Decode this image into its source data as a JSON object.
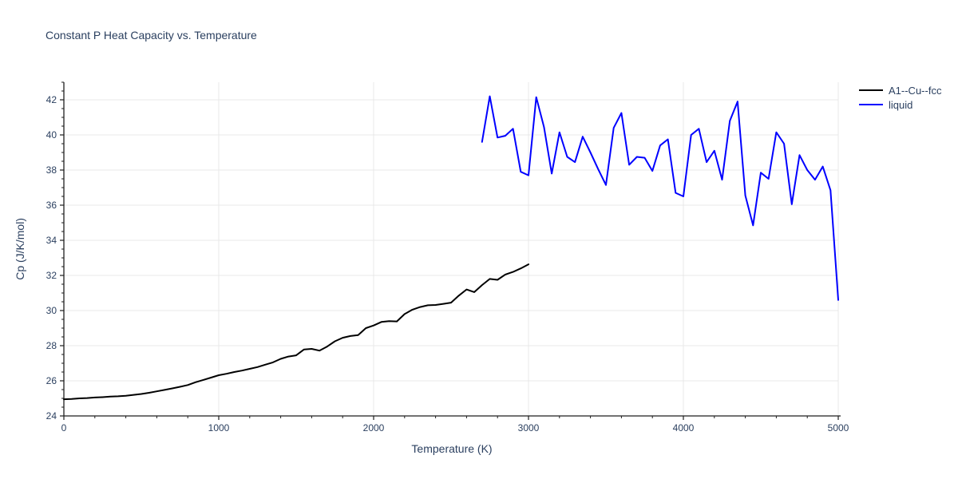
{
  "chart_data": {
    "type": "line",
    "title": "Constant P Heat Capacity vs. Temperature",
    "xlabel": "Temperature (K)",
    "ylabel": "Cp (J/K/mol)",
    "xlim": [
      0,
      5000
    ],
    "ylim": [
      24,
      43
    ],
    "x_ticks": [
      0,
      1000,
      2000,
      3000,
      4000,
      5000
    ],
    "y_ticks": [
      24,
      26,
      28,
      30,
      32,
      34,
      36,
      38,
      40,
      42
    ],
    "x_minor_tick_step": 200,
    "y_minor_tick_step": 0.5,
    "grid": true,
    "legend_position": "top-right",
    "colors": {
      "title_text": "#2a3f5f",
      "tick_text": "#2a3f5f",
      "axis_line": "#1f1f1f",
      "gridline": "#e8e8e8",
      "background": "#ffffff",
      "series_fcc": "#000000",
      "series_liquid": "#0000ff"
    },
    "series": [
      {
        "name": "A1--Cu--fcc",
        "color": "#000000",
        "x": [
          0,
          50,
          100,
          150,
          200,
          250,
          300,
          350,
          400,
          450,
          500,
          550,
          600,
          650,
          700,
          750,
          800,
          850,
          900,
          950,
          1000,
          1050,
          1100,
          1150,
          1200,
          1250,
          1300,
          1350,
          1400,
          1450,
          1500,
          1550,
          1600,
          1650,
          1700,
          1750,
          1800,
          1850,
          1900,
          1950,
          2000,
          2050,
          2100,
          2150,
          2200,
          2250,
          2300,
          2350,
          2400,
          2450,
          2500,
          2550,
          2600,
          2650,
          2700,
          2750,
          2800,
          2850,
          2900,
          2950,
          3000
        ],
        "y": [
          24.95,
          24.97,
          25.0,
          25.02,
          25.05,
          25.07,
          25.1,
          25.12,
          25.15,
          25.2,
          25.25,
          25.32,
          25.4,
          25.48,
          25.57,
          25.66,
          25.76,
          25.92,
          26.05,
          26.18,
          26.32,
          26.4,
          26.5,
          26.58,
          26.68,
          26.78,
          26.92,
          27.05,
          27.25,
          27.38,
          27.45,
          27.78,
          27.82,
          27.72,
          27.95,
          28.25,
          28.45,
          28.55,
          28.6,
          29.0,
          29.15,
          29.35,
          29.4,
          29.38,
          29.8,
          30.05,
          30.2,
          30.3,
          30.32,
          30.38,
          30.45,
          30.85,
          31.2,
          31.05,
          31.45,
          31.8,
          31.75,
          32.05,
          32.2,
          32.4,
          32.63
        ]
      },
      {
        "name": "liquid",
        "color": "#0000ff",
        "x": [
          2700,
          2750,
          2800,
          2850,
          2900,
          2950,
          3000,
          3050,
          3100,
          3150,
          3200,
          3250,
          3300,
          3350,
          3400,
          3450,
          3500,
          3550,
          3600,
          3650,
          3700,
          3750,
          3800,
          3850,
          3900,
          3950,
          4000,
          4050,
          4100,
          4150,
          4200,
          4250,
          4300,
          4350,
          4400,
          4450,
          4500,
          4550,
          4600,
          4650,
          4700,
          4750,
          4800,
          4850,
          4900,
          4950,
          5000
        ],
        "y": [
          39.6,
          42.2,
          39.85,
          39.95,
          40.35,
          37.9,
          37.7,
          42.15,
          40.45,
          37.8,
          40.15,
          38.75,
          38.45,
          39.9,
          39.0,
          38.05,
          37.15,
          40.4,
          41.25,
          38.3,
          38.75,
          38.7,
          37.95,
          39.4,
          39.75,
          36.7,
          36.5,
          40.0,
          40.35,
          38.45,
          39.1,
          37.45,
          40.8,
          41.9,
          36.55,
          34.85,
          37.85,
          37.5,
          40.15,
          39.5,
          36.05,
          38.85,
          38.0,
          37.45,
          38.2,
          36.85,
          30.6
        ]
      }
    ]
  }
}
